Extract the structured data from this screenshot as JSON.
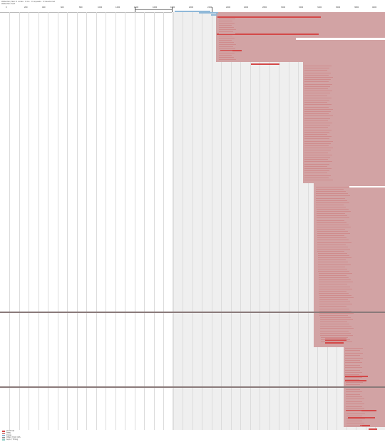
{
  "header": {
    "lines": [
      "Waterfall / Net: 0 nodes · 0 ms · 0 requests · 0 transferred",
      "Waterfall chart"
    ]
  },
  "ruler": {
    "ticks": [
      "0",
      "200",
      "400",
      "600",
      "800",
      "1000",
      "1200",
      "1400",
      "1600",
      "1800",
      "2000",
      "2200",
      "2400",
      "2600",
      "2800",
      "3000",
      "3200",
      "3400",
      "3600",
      "3800",
      "4000"
    ]
  },
  "legend": {
    "items": [
      {
        "label": "JavaScript",
        "color": "#d44848"
      },
      {
        "label": "HTML",
        "color": "#cf8b8c"
      },
      {
        "label": "Image",
        "color": "#8fb8d8"
      },
      {
        "label": "Other / Font / CSS",
        "color": "#9a9a9a"
      },
      {
        "label": "Async / Timing",
        "color": "#8fd0c8"
      }
    ]
  }
}
